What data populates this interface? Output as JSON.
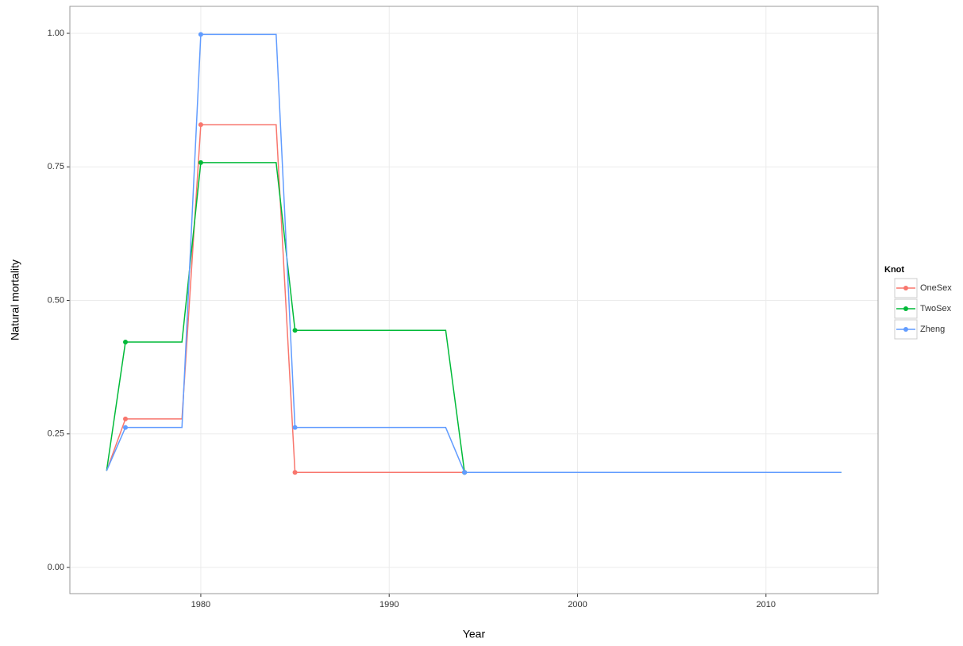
{
  "chart_data": {
    "type": "line",
    "xlabel": "Year",
    "ylabel": "Natural mortality",
    "x": [
      1975,
      1976,
      1979,
      1980,
      1984,
      1985,
      1993,
      1994,
      2014
    ],
    "point_x": [
      1976,
      1980,
      1985,
      1994
    ],
    "series": [
      {
        "name": "OneSex",
        "color": "#F8766D",
        "values": [
          0.181,
          0.278,
          0.278,
          0.829,
          0.829,
          0.178,
          0.178,
          0.178,
          0.178
        ]
      },
      {
        "name": "TwoSex",
        "color": "#00BA38",
        "values": [
          0.181,
          0.422,
          0.422,
          0.758,
          0.758,
          0.444,
          0.444,
          0.178,
          0.178
        ]
      },
      {
        "name": "Zheng",
        "color": "#619CFF",
        "values": [
          0.181,
          0.262,
          0.262,
          0.998,
          0.998,
          0.262,
          0.262,
          0.178,
          0.178
        ]
      }
    ],
    "legend_title": "Knot",
    "legend": "right",
    "grid": true,
    "xlim": [
      1973.05,
      2015.95
    ],
    "xticks": [
      1980,
      1990,
      2000,
      2010
    ],
    "ylim": [
      -0.049,
      1.0505
    ],
    "yticks": [
      {
        "value": 0,
        "label": "0.00"
      },
      {
        "value": 0.25,
        "label": "0.25"
      },
      {
        "value": 0.5,
        "label": "0.50"
      },
      {
        "value": 0.75,
        "label": "0.75"
      },
      {
        "value": 1,
        "label": "1.00"
      }
    ]
  }
}
